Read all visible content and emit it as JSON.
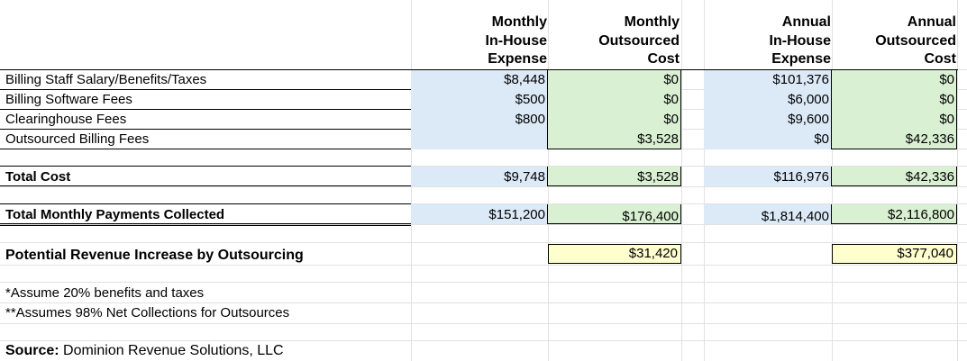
{
  "headers": {
    "monthly_inhouse": [
      "Monthly",
      "In-House",
      "Expense"
    ],
    "monthly_outsourced": [
      "Monthly",
      "Outsourced",
      "Cost"
    ],
    "annual_inhouse": [
      "Annual",
      "In-House",
      "Expense"
    ],
    "annual_outsourced": [
      "Annual",
      "Outsourced",
      "Cost"
    ]
  },
  "rows": [
    {
      "label": "Billing Staff Salary/Benefits/Taxes",
      "m_in": "$8,448",
      "m_out": "$0",
      "a_in": "$101,376",
      "a_out": "$0"
    },
    {
      "label": "Billing Software Fees",
      "m_in": "$500",
      "m_out": "$0",
      "a_in": "$6,000",
      "a_out": "$0"
    },
    {
      "label": "Clearinghouse Fees",
      "m_in": "$800",
      "m_out": "$0",
      "a_in": "$9,600",
      "a_out": "$0"
    },
    {
      "label": "Outsourced Billing Fees",
      "m_in": "",
      "m_out": "$3,528",
      "a_in": "$0",
      "a_out": "$42,336"
    }
  ],
  "total_cost": {
    "label": "Total Cost",
    "m_in": "$9,748",
    "m_out": "$3,528",
    "a_in": "$116,976",
    "a_out": "$42,336"
  },
  "total_payments": {
    "label": "Total Monthly Payments Collected",
    "m_in": "$151,200",
    "m_out": "$176,400",
    "a_in": "$1,814,400",
    "a_out": "$2,116,800"
  },
  "revenue_increase": {
    "label": "Potential Revenue Increase by Outsourcing",
    "monthly": "$31,420",
    "annual": "$377,040"
  },
  "notes": {
    "note1": "*Assume 20% benefits and taxes",
    "note2": "**Assumes 98% Net Collections for Outsources"
  },
  "source": {
    "label": "Source:",
    "text": " Dominion Revenue Solutions, LLC"
  },
  "colors": {
    "blue_fill": "#dce9f7",
    "green_fill": "#d9f0d3",
    "yellow_fill": "#fefecf",
    "gridline": "#e1e1e1"
  }
}
